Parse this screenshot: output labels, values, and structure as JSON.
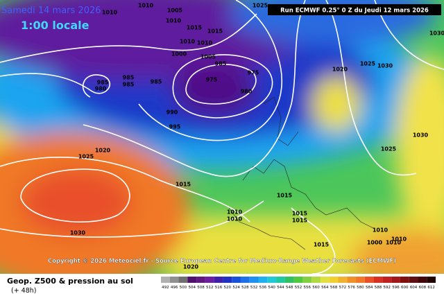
{
  "header": {
    "date": "Samedi 14 mars 2026",
    "time": "1:00 locale",
    "run": "Run ECMWF 0.25° 0 Z du Jeudi 12 mars 2026"
  },
  "copyright": "Copyright © 2026 Meteociel.fr - Source European Centre for Medium-Range Weather Forecasts (ECMWF)",
  "footer": {
    "title": "Geop. Z500 & pression au sol",
    "lead": "(+ 48h)"
  },
  "isobar_labels": [
    1010,
    1010,
    1005,
    1010,
    1015,
    1015,
    1010,
    1010,
    1000,
    1005,
    985,
    985,
    985,
    980,
    985,
    985,
    975,
    975,
    980,
    990,
    995,
    1020,
    1025,
    1015,
    1030,
    1010,
    1010,
    1015,
    1015,
    1015,
    1020,
    1025,
    1030,
    1025,
    1030,
    1010,
    1010,
    1000,
    1010,
    1025,
    1030,
    1020,
    1015
  ],
  "colorbar": {
    "ticks": [
      492,
      496,
      500,
      504,
      508,
      512,
      516,
      520,
      524,
      528,
      532,
      536,
      540,
      544,
      548,
      552,
      556,
      560,
      564,
      568,
      572,
      576,
      580,
      584,
      588,
      592,
      596,
      600,
      604,
      608,
      612
    ]
  }
}
